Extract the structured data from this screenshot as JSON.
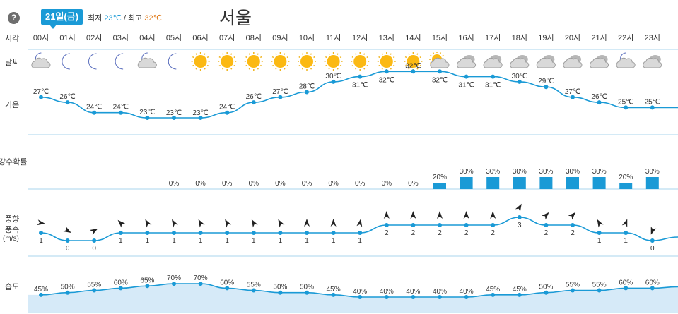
{
  "header": {
    "help": "?",
    "date": "21일(금)",
    "min_label": "최저",
    "min_value": "23℃",
    "sep": "/",
    "max_label": "최고",
    "max_value": "32℃",
    "city": "서울"
  },
  "labels": {
    "time": "시각",
    "weather": "날씨",
    "temp": "기온",
    "precip": "강수확률",
    "wind_dir": "풍향",
    "wind_speed": "풍속",
    "wind_unit": "(m/s)",
    "humidity": "습도"
  },
  "colors": {
    "accent": "#1a9ad6",
    "line": "#1a9ad6",
    "humidity_fill": "#d6eaf8",
    "min": "#1a9ad6",
    "max": "#e07b1a"
  },
  "chart_data": {
    "type": "line",
    "x": [
      "00시",
      "01시",
      "02시",
      "03시",
      "04시",
      "05시",
      "06시",
      "07시",
      "08시",
      "09시",
      "10시",
      "11시",
      "12시",
      "13시",
      "14시",
      "15시",
      "16시",
      "17시",
      "18시",
      "19시",
      "20시",
      "21시",
      "22시",
      "23시"
    ],
    "weather_icons": [
      "partly-cloudy-night-icon",
      "moon-icon",
      "moon-icon",
      "moon-icon",
      "partly-cloudy-night-icon",
      "moon-icon",
      "sun-icon",
      "sun-icon",
      "sun-icon",
      "sun-icon",
      "sun-icon",
      "sun-icon",
      "sun-icon",
      "sun-icon",
      "sun-icon",
      "partly-cloudy-day-icon",
      "cloudy-icon",
      "cloudy-icon",
      "cloudy-icon",
      "cloudy-icon",
      "cloudy-icon",
      "cloudy-icon",
      "partly-cloudy-night-icon",
      "cloudy-icon"
    ],
    "series": [
      {
        "name": "기온",
        "unit": "℃",
        "values": [
          27,
          26,
          24,
          24,
          23,
          23,
          23,
          24,
          26,
          27,
          28,
          30,
          31,
          32,
          32,
          32,
          31,
          31,
          30,
          29,
          27,
          26,
          25,
          25
        ]
      },
      {
        "name": "강수확률",
        "unit": "%",
        "values": [
          null,
          null,
          null,
          null,
          null,
          0,
          0,
          0,
          0,
          0,
          0,
          0,
          0,
          0,
          0,
          20,
          30,
          30,
          30,
          30,
          30,
          30,
          20,
          30
        ]
      },
      {
        "name": "풍속",
        "unit": "m/s",
        "values": [
          1,
          0,
          0,
          1,
          1,
          1,
          1,
          1,
          1,
          1,
          1,
          1,
          1,
          2,
          2,
          2,
          2,
          2,
          3,
          2,
          2,
          1,
          1,
          0
        ],
        "direction_deg": [
          100,
          120,
          60,
          315,
          330,
          330,
          330,
          330,
          330,
          330,
          0,
          0,
          10,
          0,
          0,
          0,
          0,
          0,
          30,
          45,
          45,
          330,
          20,
          200
        ]
      },
      {
        "name": "습도",
        "unit": "%",
        "values": [
          45,
          50,
          55,
          60,
          65,
          70,
          70,
          60,
          55,
          50,
          50,
          45,
          40,
          40,
          40,
          40,
          40,
          45,
          45,
          50,
          55,
          55,
          60,
          60
        ]
      }
    ],
    "temp_labels_below": [
      false,
      false,
      false,
      false,
      false,
      true,
      true,
      false,
      false,
      false,
      false,
      false,
      true,
      true,
      false,
      true,
      true,
      true,
      false,
      false,
      false,
      false,
      false,
      false
    ]
  }
}
